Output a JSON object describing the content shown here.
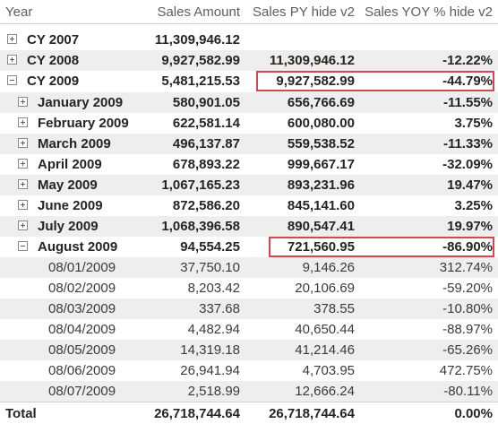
{
  "headers": {
    "year": "Year",
    "sales_amount": "Sales Amount",
    "sales_py": "Sales PY hide v2",
    "sales_yoy": "Sales YOY % hide v2"
  },
  "years": [
    {
      "label": "CY 2007",
      "sales": "11,309,946.12",
      "py": "",
      "yoy": ""
    },
    {
      "label": "CY 2008",
      "sales": "9,927,582.99",
      "py": "11,309,946.12",
      "yoy": "-12.22%"
    },
    {
      "label": "CY 2009",
      "sales": "5,481,215.53",
      "py": "9,927,582.99",
      "yoy": "-44.79%"
    }
  ],
  "months": [
    {
      "label": "January 2009",
      "sales": "580,901.05",
      "py": "656,766.69",
      "yoy": "-11.55%"
    },
    {
      "label": "February 2009",
      "sales": "622,581.14",
      "py": "600,080.00",
      "yoy": "3.75%"
    },
    {
      "label": "March 2009",
      "sales": "496,137.87",
      "py": "559,538.52",
      "yoy": "-11.33%"
    },
    {
      "label": "April 2009",
      "sales": "678,893.22",
      "py": "999,667.17",
      "yoy": "-32.09%"
    },
    {
      "label": "May 2009",
      "sales": "1,067,165.23",
      "py": "893,231.96",
      "yoy": "19.47%"
    },
    {
      "label": "June 2009",
      "sales": "872,586.20",
      "py": "845,141.60",
      "yoy": "3.25%"
    },
    {
      "label": "July 2009",
      "sales": "1,068,396.58",
      "py": "890,547.41",
      "yoy": "19.97%"
    },
    {
      "label": "August 2009",
      "sales": "94,554.25",
      "py": "721,560.95",
      "yoy": "-86.90%"
    }
  ],
  "days": [
    {
      "label": "08/01/2009",
      "sales": "37,750.10",
      "py": "9,146.26",
      "yoy": "312.74%"
    },
    {
      "label": "08/02/2009",
      "sales": "8,203.42",
      "py": "20,106.69",
      "yoy": "-59.20%"
    },
    {
      "label": "08/03/2009",
      "sales": "337.68",
      "py": "378.55",
      "yoy": "-10.80%"
    },
    {
      "label": "08/04/2009",
      "sales": "4,482.94",
      "py": "40,650.44",
      "yoy": "-88.97%"
    },
    {
      "label": "08/05/2009",
      "sales": "14,319.18",
      "py": "41,214.46",
      "yoy": "-65.26%"
    },
    {
      "label": "08/06/2009",
      "sales": "26,941.94",
      "py": "4,703.95",
      "yoy": "472.75%"
    },
    {
      "label": "08/07/2009",
      "sales": "2,518.99",
      "py": "12,666.24",
      "yoy": "-80.11%"
    }
  ],
  "total": {
    "label": "Total",
    "sales": "26,718,744.64",
    "py": "26,718,744.64",
    "yoy": "0.00%"
  },
  "colors": {
    "highlight": "#d64550",
    "shade": "#eeeeee",
    "header_text": "#605e5c"
  }
}
